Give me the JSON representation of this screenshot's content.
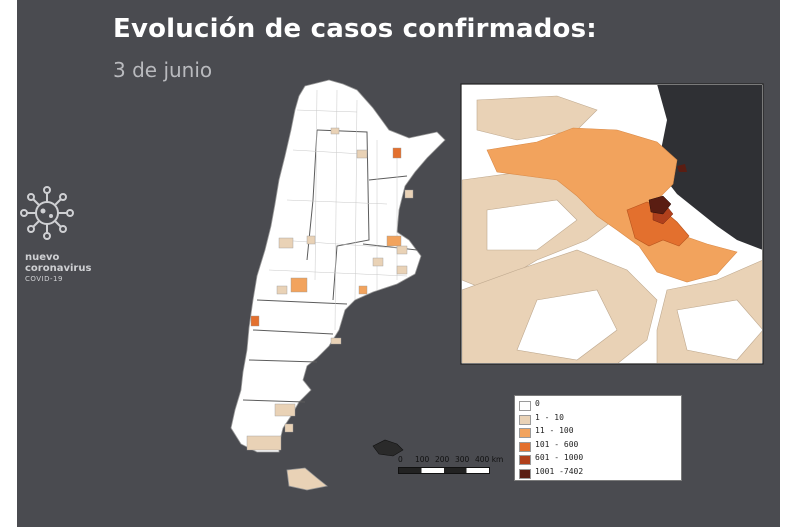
{
  "header": {
    "title": "Evolución de casos confirmados:",
    "subtitle": "3 de junio"
  },
  "brand": {
    "icon": "coronavirus-icon",
    "line1": "nuevo",
    "line2": "coronavirus",
    "line3": "COVID-19"
  },
  "colors": {
    "background": "#4a4b50",
    "class_0": "#ffffff",
    "class_1": "#e9d2b6",
    "class_2": "#f2a35d",
    "class_3": "#e3702e",
    "class_4": "#b0401c",
    "class_5": "#5a1d12"
  },
  "legend": {
    "items": [
      {
        "label": "0",
        "color": "#ffffff"
      },
      {
        "label": "1 - 10",
        "color": "#e9d2b6"
      },
      {
        "label": "11 - 100",
        "color": "#f2a35d"
      },
      {
        "label": "101 - 600",
        "color": "#e3702e"
      },
      {
        "label": "601 - 1000",
        "color": "#b0401c"
      },
      {
        "label": "1001 -7402",
        "color": "#5a1d12"
      }
    ]
  },
  "scale": {
    "ticks": [
      "0",
      "100",
      "200",
      "300",
      "400 km"
    ]
  }
}
